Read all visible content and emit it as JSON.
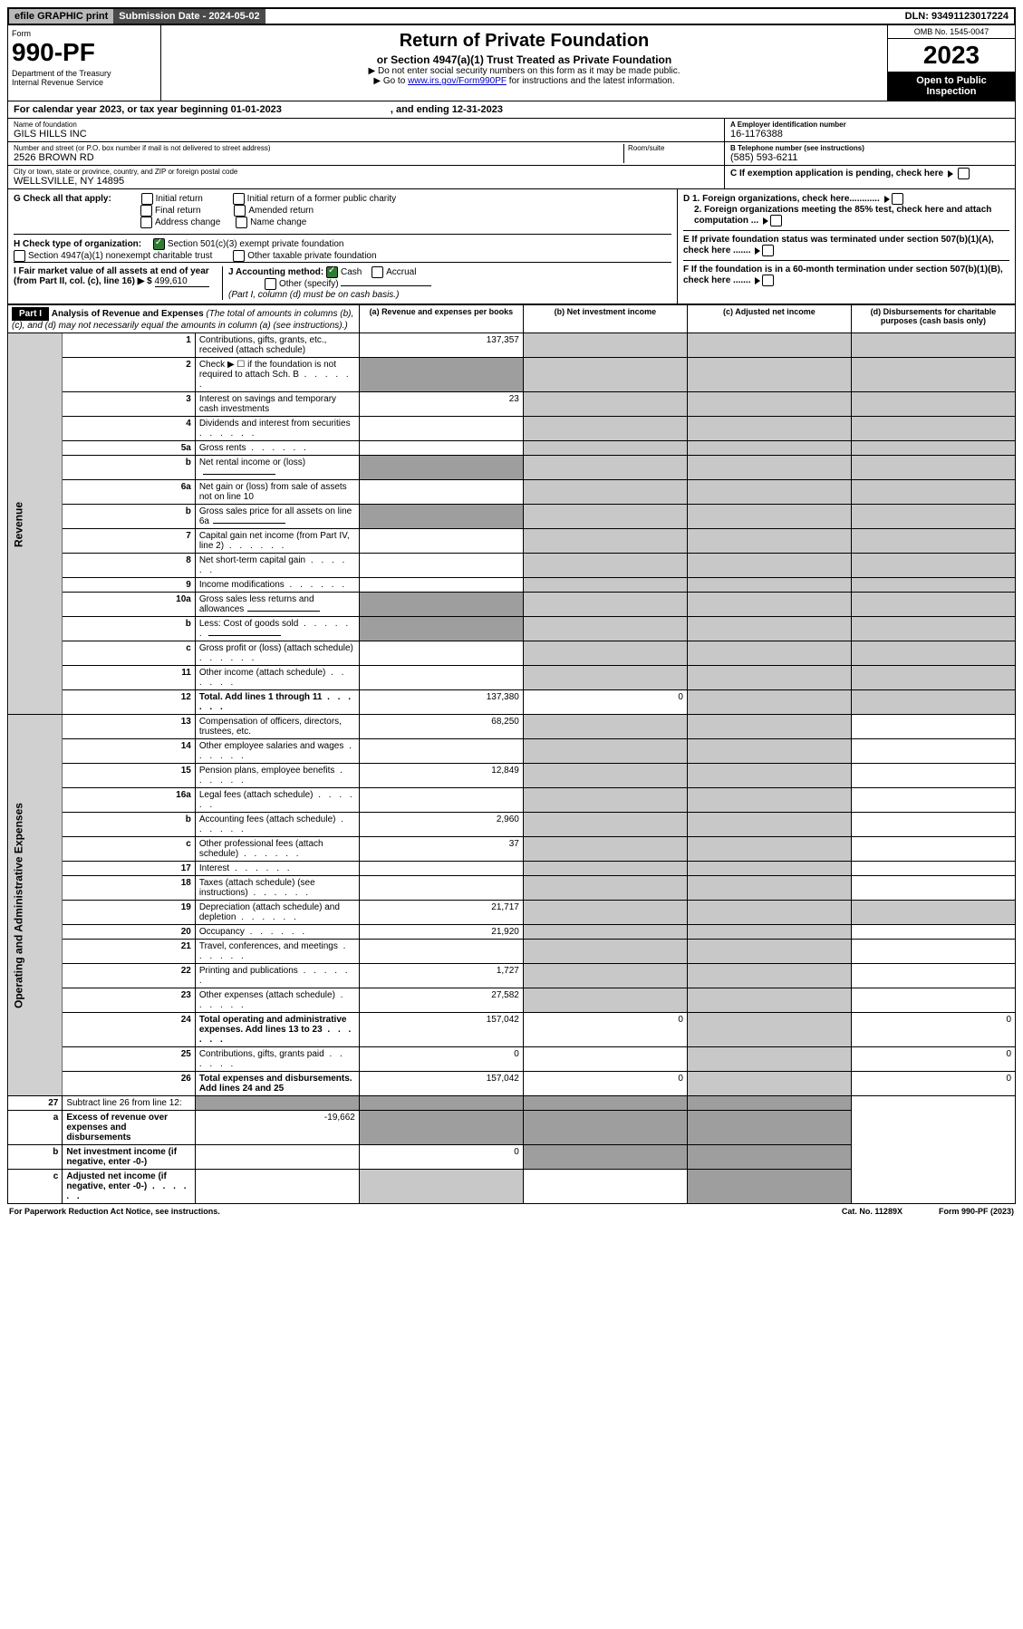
{
  "topbar": {
    "efile": "efile GRAPHIC print",
    "sub": "Submission Date - 2024-05-02",
    "dln": "DLN: 93491123017224"
  },
  "header": {
    "form": "Form",
    "num": "990-PF",
    "dept": "Department of the Treasury",
    "irs": "Internal Revenue Service",
    "title": "Return of Private Foundation",
    "sub": "or Section 4947(a)(1) Trust Treated as Private Foundation",
    "note1": "▶ Do not enter social security numbers on this form as it may be made public.",
    "note2": "▶ Go to ",
    "link": "www.irs.gov/Form990PF",
    "note2b": " for instructions and the latest information.",
    "omb": "OMB No. 1545-0047",
    "year": "2023",
    "open": "Open to Public Inspection"
  },
  "cy": {
    "a": "For calendar year 2023, or tax year beginning 01-01-2023",
    "b": ", and ending 12-31-2023"
  },
  "id": {
    "name_lbl": "Name of foundation",
    "name": "GILS HILLS INC",
    "addr_lbl": "Number and street (or P.O. box number if mail is not delivered to street address)",
    "addr": "2526 BROWN RD",
    "room_lbl": "Room/suite",
    "city_lbl": "City or town, state or province, country, and ZIP or foreign postal code",
    "city": "WELLSVILLE, NY  14895",
    "a_lbl": "A Employer identification number",
    "ein": "16-1176388",
    "b_lbl": "B Telephone number (see instructions)",
    "phone": "(585) 593-6211",
    "c_lbl": "C If exemption application is pending, check here"
  },
  "g": {
    "lbl": "G Check all that apply:",
    "i": "Initial return",
    "f": "Final return",
    "ac": "Address change",
    "ip": "Initial return of a former public charity",
    "am": "Amended return",
    "nc": "Name change"
  },
  "h": {
    "lbl": "H Check type of organization:",
    "c3": "Section 501(c)(3) exempt private foundation",
    "ne": "Section 4947(a)(1) nonexempt charitable trust",
    "ot": "Other taxable private foundation"
  },
  "i": {
    "lbl": "I Fair market value of all assets at end of year (from Part II, col. (c), line 16) ▶ $",
    "val": "499,610"
  },
  "j": {
    "lbl": "J Accounting method:",
    "cash": "Cash",
    "acc": "Accrual",
    "oth": "Other (specify)",
    "note": "(Part I, column (d) must be on cash basis.)"
  },
  "d": {
    "d1": "D 1. Foreign organizations, check here............",
    "d2": "2. Foreign organizations meeting the 85% test, check here and attach computation ..."
  },
  "e": {
    "lbl": "E  If private foundation status was terminated under section 507(b)(1)(A), check here ......."
  },
  "f": {
    "lbl": "F  If the foundation is in a 60-month termination under section 507(b)(1)(B), check here ......."
  },
  "p1": {
    "title": "Part I",
    "head": "Analysis of Revenue and Expenses",
    "sub": "(The total of amounts in columns (b), (c), and (d) may not necessarily equal the amounts in column (a) (see instructions).)",
    "ca": "(a)  Revenue and expenses per books",
    "cb": "(b)  Net investment income",
    "cc": "(c)  Adjusted net income",
    "cd": "(d)  Disbursements for charitable purposes (cash basis only)"
  },
  "rev": "Revenue",
  "exp": "Operating and Administrative Expenses",
  "rows": [
    {
      "n": "1",
      "d": "Contributions, gifts, grants, etc., received (attach schedule)",
      "a": "137,357"
    },
    {
      "n": "2",
      "d": "Check ▶ ☐ if the foundation is not required to attach Sch. B",
      "dots": 1
    },
    {
      "n": "3",
      "d": "Interest on savings and temporary cash investments",
      "a": "23"
    },
    {
      "n": "4",
      "d": "Dividends and interest from securities",
      "dots": 1
    },
    {
      "n": "5a",
      "d": "Gross rents",
      "dots": 1
    },
    {
      "n": "b",
      "d": "Net rental income or (loss)",
      "ulafter": 1
    },
    {
      "n": "6a",
      "d": "Net gain or (loss) from sale of assets not on line 10"
    },
    {
      "n": "b",
      "d": "Gross sales price for all assets on line 6a",
      "ulafter": 1
    },
    {
      "n": "7",
      "d": "Capital gain net income (from Part IV, line 2)",
      "dots": 1
    },
    {
      "n": "8",
      "d": "Net short-term capital gain",
      "dots": 1
    },
    {
      "n": "9",
      "d": "Income modifications",
      "dots": 1
    },
    {
      "n": "10a",
      "d": "Gross sales less returns and allowances",
      "ulafter": 1
    },
    {
      "n": "b",
      "d": "Less: Cost of goods sold",
      "dots": 1,
      "ulafter": 1
    },
    {
      "n": "c",
      "d": "Gross profit or (loss) (attach schedule)",
      "dots": 1
    },
    {
      "n": "11",
      "d": "Other income (attach schedule)",
      "dots": 1
    },
    {
      "n": "12",
      "d": "Total. Add lines 1 through 11",
      "dots": 1,
      "bold": 1,
      "a": "137,380",
      "b": "0"
    }
  ],
  "erows": [
    {
      "n": "13",
      "d": "Compensation of officers, directors, trustees, etc.",
      "a": "68,250"
    },
    {
      "n": "14",
      "d": "Other employee salaries and wages",
      "dots": 1
    },
    {
      "n": "15",
      "d": "Pension plans, employee benefits",
      "dots": 1,
      "a": "12,849"
    },
    {
      "n": "16a",
      "d": "Legal fees (attach schedule)",
      "dots": 1
    },
    {
      "n": "b",
      "d": "Accounting fees (attach schedule)",
      "dots": 1,
      "a": "2,960"
    },
    {
      "n": "c",
      "d": "Other professional fees (attach schedule)",
      "dots": 1,
      "a": "37"
    },
    {
      "n": "17",
      "d": "Interest",
      "dots": 1
    },
    {
      "n": "18",
      "d": "Taxes (attach schedule) (see instructions)",
      "dots": 1
    },
    {
      "n": "19",
      "d": "Depreciation (attach schedule) and depletion",
      "dots": 1,
      "a": "21,717"
    },
    {
      "n": "20",
      "d": "Occupancy",
      "dots": 1,
      "a": "21,920"
    },
    {
      "n": "21",
      "d": "Travel, conferences, and meetings",
      "dots": 1
    },
    {
      "n": "22",
      "d": "Printing and publications",
      "dots": 1,
      "a": "1,727"
    },
    {
      "n": "23",
      "d": "Other expenses (attach schedule)",
      "dots": 1,
      "a": "27,582"
    },
    {
      "n": "24",
      "d": "Total operating and administrative expenses. Add lines 13 to 23",
      "dots": 1,
      "bold": 1,
      "a": "157,042",
      "b": "0",
      "db": "0"
    },
    {
      "n": "25",
      "d": "Contributions, gifts, grants paid",
      "dots": 1,
      "a": "0",
      "db": "0"
    },
    {
      "n": "26",
      "d": "Total expenses and disbursements. Add lines 24 and 25",
      "bold": 1,
      "a": "157,042",
      "b": "0",
      "db": "0"
    }
  ],
  "prows": [
    {
      "n": "27",
      "d": "Subtract line 26 from line 12:",
      "bold": 0
    },
    {
      "n": "a",
      "d": "Excess of revenue over expenses and disbursements",
      "bold": 1,
      "a": "-19,662"
    },
    {
      "n": "b",
      "d": "Net investment income (if negative, enter -0-)",
      "bold": 1,
      "b": "0"
    },
    {
      "n": "c",
      "d": "Adjusted net income (if negative, enter -0-)",
      "bold": 1,
      "dots": 1
    }
  ],
  "footer": {
    "a": "For Paperwork Reduction Act Notice, see instructions.",
    "b": "Cat. No. 11289X",
    "c": "Form 990-PF (2023)"
  }
}
